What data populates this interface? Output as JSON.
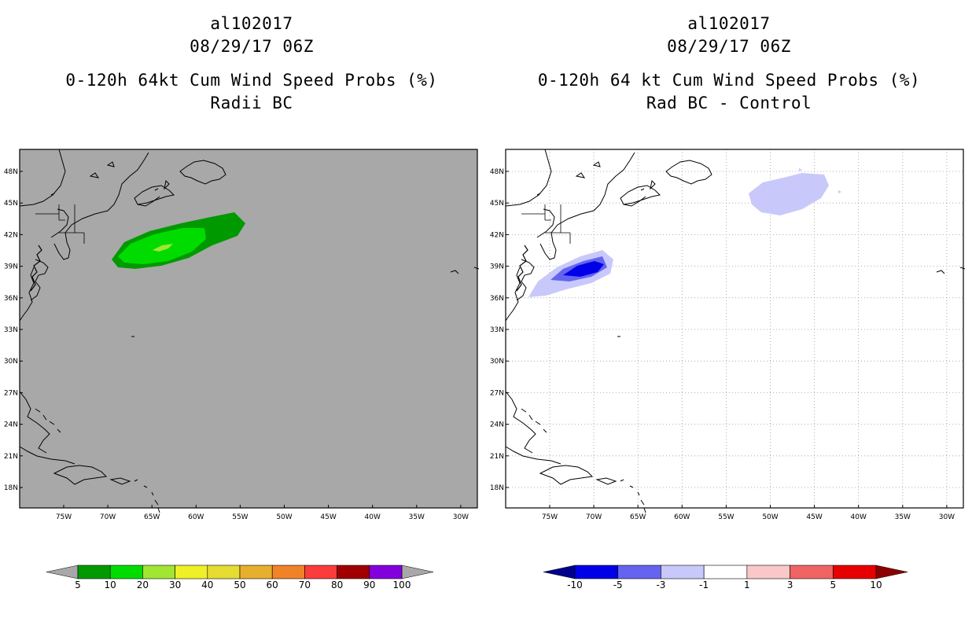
{
  "left_panel": {
    "storm_id": "al102017",
    "datetime": "08/29/17 06Z",
    "title": "0-120h 64kt Cum Wind Speed Probs (%)",
    "subtitle": "Radii BC",
    "background_color": "#a8a8a8",
    "colorbar": {
      "labels": [
        "5",
        "10",
        "20",
        "30",
        "40",
        "50",
        "60",
        "70",
        "80",
        "90",
        "100"
      ],
      "colors": [
        "#009a00",
        "#00dc00",
        "#a0e632",
        "#f0f028",
        "#e6dc32",
        "#e6af2d",
        "#f08228",
        "#fa3c3c",
        "#a00000",
        "#8200dc"
      ]
    }
  },
  "right_panel": {
    "storm_id": "al102017",
    "datetime": "08/29/17 06Z",
    "title": "0-120h 64 kt Cum Wind Speed Probs (%)",
    "subtitle": "Rad BC - Control",
    "background_color": "#ffffff",
    "colorbar": {
      "labels": [
        "-10",
        "-5",
        "-3",
        "-1",
        "1",
        "3",
        "5",
        "10"
      ],
      "colors": [
        "#0000e6",
        "#6464f0",
        "#c8c8fa",
        "#ffffff",
        "#fac8c8",
        "#f06464",
        "#e60000"
      ]
    }
  },
  "map": {
    "lat_labels": [
      "48N",
      "45N",
      "42N",
      "39N",
      "36N",
      "33N",
      "30N",
      "27N",
      "24N",
      "21N",
      "18N"
    ],
    "lon_labels": [
      "75W",
      "70W",
      "65W",
      "60W",
      "55W",
      "50W",
      "45W",
      "40W",
      "35W",
      "30W"
    ]
  }
}
